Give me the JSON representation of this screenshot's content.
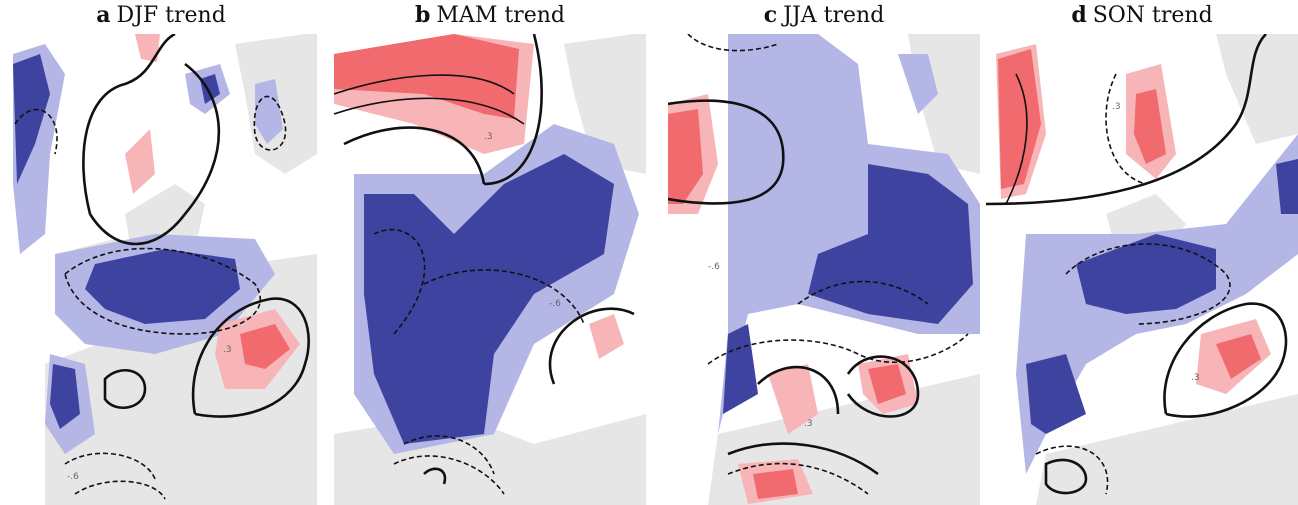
{
  "panels": [
    {
      "letter": "a",
      "title": "DJF trend"
    },
    {
      "letter": "b",
      "title": "MAM trend"
    },
    {
      "letter": "c",
      "title": "JJA trend"
    },
    {
      "letter": "d",
      "title": "SON trend"
    }
  ],
  "contour_labels": [
    ".3",
    ".6",
    "-.6",
    "-.3"
  ],
  "colors": {
    "land": "#e6e6e6",
    "strong_negative": "#3f43a0",
    "weak_negative": "#b4b6e6",
    "weak_positive": "#f7b5b8",
    "strong_positive": "#f06a6e",
    "contour": "#111111"
  }
}
